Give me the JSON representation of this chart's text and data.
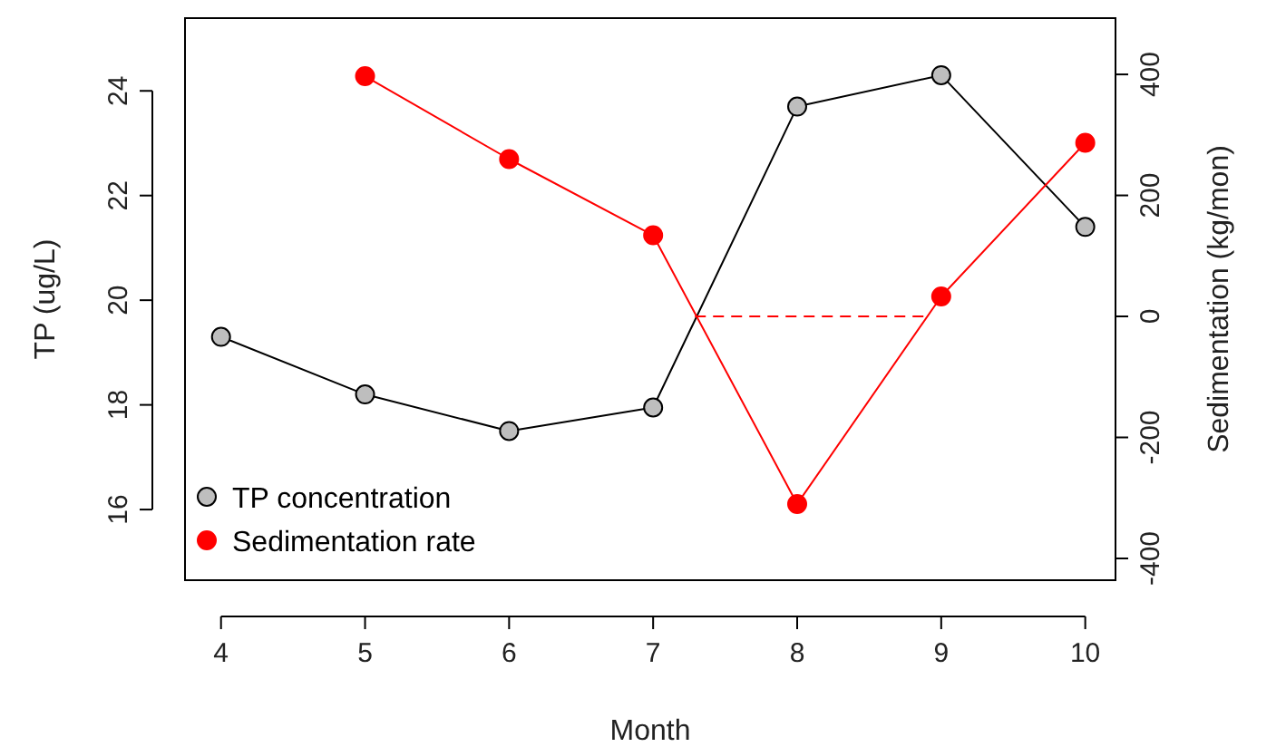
{
  "chart_data": {
    "type": "line",
    "xlabel": "Month",
    "ylabel": "TP (ug/L)",
    "y2label": "Sedimentation (kg/mon)",
    "x": [
      4,
      5,
      6,
      7,
      8,
      9,
      10
    ],
    "xlim": [
      3.75,
      10.21
    ],
    "xticks": [
      4,
      5,
      6,
      7,
      8,
      9,
      10
    ],
    "ylim": [
      14.65,
      25.39
    ],
    "yticks": [
      16,
      18,
      20,
      22,
      24
    ],
    "y2lim": [
      -436,
      493
    ],
    "y2ticks": [
      -400,
      -200,
      0,
      200,
      400
    ],
    "marker": "circle",
    "legend": "bottom left",
    "grid": false,
    "series": [
      {
        "name": "TP concentration",
        "color": "#bebebe",
        "values": [
          19.3,
          18.2,
          17.5,
          17.95,
          23.7,
          24.3,
          21.4
        ]
      },
      {
        "name": "Sedimentation rate",
        "color": "#ff0000",
        "axis": "y2",
        "values": [
          null,
          397,
          260,
          134,
          -310,
          33,
          287
        ]
      },
      {
        "color": "#ff0000",
        "axis": "y2",
        "x": [
          7.29,
          8.89
        ],
        "values": [
          0,
          0
        ],
        "marker": "none",
        "line_style": "dashed"
      }
    ]
  }
}
